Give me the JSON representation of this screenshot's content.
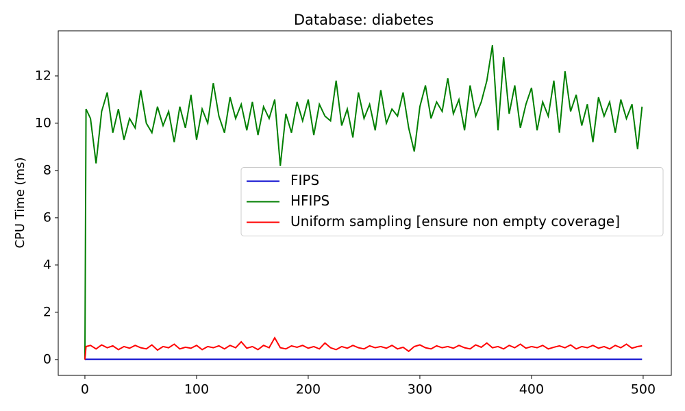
{
  "chart_data": {
    "type": "line",
    "title": "Database: diabetes",
    "y_label": "CPU Time (ms)",
    "x": [
      0,
      1,
      5,
      10,
      15,
      20,
      25,
      30,
      35,
      40,
      45,
      50,
      55,
      60,
      65,
      70,
      75,
      80,
      85,
      90,
      95,
      100,
      105,
      110,
      115,
      120,
      125,
      130,
      135,
      140,
      145,
      150,
      155,
      160,
      165,
      170,
      175,
      180,
      185,
      190,
      195,
      200,
      205,
      210,
      215,
      220,
      225,
      230,
      235,
      240,
      245,
      250,
      255,
      260,
      265,
      270,
      275,
      280,
      285,
      290,
      295,
      300,
      305,
      310,
      315,
      320,
      325,
      330,
      335,
      340,
      345,
      350,
      355,
      360,
      365,
      370,
      375,
      380,
      385,
      390,
      395,
      400,
      405,
      410,
      415,
      420,
      425,
      430,
      435,
      440,
      445,
      450,
      455,
      460,
      465,
      470,
      475,
      480,
      485,
      490,
      495,
      499
    ],
    "series": [
      {
        "name": "FIPS",
        "color": "#0000cc",
        "values": [
          0,
          0.01,
          0.01,
          0.01,
          0.01,
          0.01,
          0.01,
          0.01,
          0.01,
          0.01,
          0.01,
          0.01,
          0.01,
          0.01,
          0.01,
          0.01,
          0.01,
          0.01,
          0.01,
          0.01,
          0.01,
          0.01,
          0.01,
          0.01,
          0.01,
          0.01,
          0.01,
          0.01,
          0.01,
          0.01,
          0.01,
          0.01,
          0.01,
          0.01,
          0.01,
          0.01,
          0.01,
          0.01,
          0.01,
          0.01,
          0.01,
          0.01,
          0.01,
          0.01,
          0.01,
          0.01,
          0.01,
          0.01,
          0.01,
          0.01,
          0.01,
          0.01,
          0.01,
          0.01,
          0.01,
          0.01,
          0.01,
          0.01,
          0.01,
          0.01,
          0.01,
          0.01,
          0.01,
          0.01,
          0.01,
          0.01,
          0.01,
          0.01,
          0.01,
          0.01,
          0.01,
          0.01,
          0.01,
          0.01,
          0.01,
          0.01,
          0.01,
          0.01,
          0.01,
          0.01,
          0.01,
          0.01,
          0.01,
          0.01,
          0.01,
          0.01,
          0.01,
          0.01,
          0.01,
          0.01,
          0.01,
          0.01,
          0.01,
          0.01,
          0.01,
          0.01,
          0.01,
          0.01,
          0.01,
          0.01,
          0.01,
          0.01
        ]
      },
      {
        "name": "HFIPS",
        "color": "#007f00",
        "values": [
          0,
          10.6,
          10.2,
          8.3,
          10.5,
          11.3,
          9.6,
          10.6,
          9.3,
          10.2,
          9.8,
          11.4,
          10.0,
          9.6,
          10.7,
          9.9,
          10.5,
          9.2,
          10.7,
          9.8,
          11.2,
          9.3,
          10.6,
          10.0,
          11.7,
          10.3,
          9.6,
          11.1,
          10.2,
          10.8,
          9.7,
          10.9,
          9.5,
          10.7,
          10.2,
          11.0,
          8.2,
          10.4,
          9.6,
          10.9,
          10.1,
          11.0,
          9.5,
          10.8,
          10.3,
          10.1,
          11.8,
          9.9,
          10.6,
          9.4,
          11.3,
          10.2,
          10.8,
          9.7,
          11.4,
          10.0,
          10.6,
          10.3,
          11.3,
          9.8,
          8.8,
          10.7,
          11.6,
          10.2,
          10.9,
          10.5,
          11.9,
          10.4,
          11.0,
          9.7,
          11.6,
          10.3,
          10.9,
          11.8,
          13.3,
          9.7,
          12.8,
          10.4,
          11.6,
          9.8,
          10.8,
          11.5,
          9.7,
          10.9,
          10.3,
          11.8,
          9.6,
          12.2,
          10.5,
          11.2,
          9.9,
          10.8,
          9.2,
          11.1,
          10.3,
          10.9,
          9.6,
          11.0,
          10.2,
          10.8,
          8.9,
          10.7
        ]
      },
      {
        "name": "Uniform sampling [ensure non empty coverage]",
        "color": "#ff0000",
        "values": [
          0,
          0.55,
          0.6,
          0.45,
          0.62,
          0.5,
          0.58,
          0.42,
          0.55,
          0.48,
          0.6,
          0.5,
          0.45,
          0.62,
          0.4,
          0.55,
          0.5,
          0.65,
          0.45,
          0.52,
          0.48,
          0.6,
          0.42,
          0.55,
          0.5,
          0.58,
          0.45,
          0.6,
          0.5,
          0.75,
          0.48,
          0.55,
          0.42,
          0.6,
          0.5,
          0.92,
          0.5,
          0.45,
          0.58,
          0.52,
          0.6,
          0.48,
          0.55,
          0.45,
          0.7,
          0.5,
          0.42,
          0.55,
          0.48,
          0.6,
          0.5,
          0.45,
          0.58,
          0.5,
          0.55,
          0.48,
          0.6,
          0.45,
          0.52,
          0.35,
          0.55,
          0.62,
          0.5,
          0.45,
          0.58,
          0.5,
          0.55,
          0.48,
          0.6,
          0.5,
          0.45,
          0.62,
          0.52,
          0.7,
          0.5,
          0.55,
          0.45,
          0.6,
          0.5,
          0.65,
          0.48,
          0.55,
          0.5,
          0.6,
          0.45,
          0.52,
          0.58,
          0.5,
          0.62,
          0.45,
          0.55,
          0.5,
          0.6,
          0.48,
          0.55,
          0.45,
          0.6,
          0.5,
          0.65,
          0.48,
          0.55,
          0.58
        ]
      }
    ],
    "xlim": [
      -23.9,
      525.2
    ],
    "ylim": [
      -0.67,
      13.91
    ],
    "xticks": [
      0,
      100,
      200,
      300,
      400,
      500
    ],
    "yticks": [
      0,
      2,
      4,
      6,
      8,
      10,
      12
    ],
    "legend": "center right"
  }
}
